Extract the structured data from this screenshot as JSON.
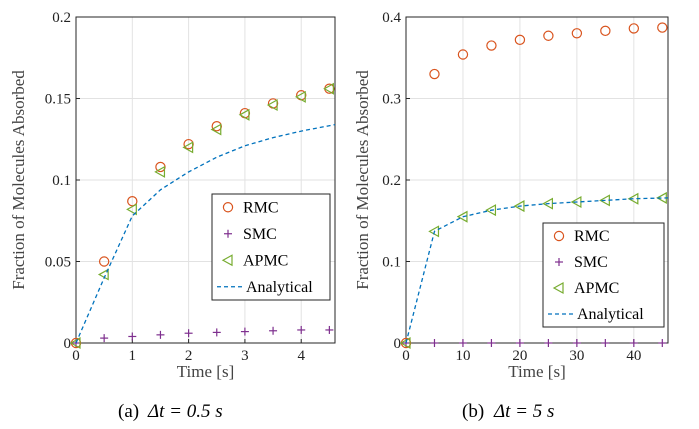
{
  "colors": {
    "RMC": "#d9541e",
    "SMC": "#7e2f8e",
    "APMC": "#77ac30",
    "Analytical": "#0072bd",
    "grid": "#e2e2e2"
  },
  "chart_data": [
    {
      "type": "scatter",
      "caption_prefix": "(a)",
      "caption_math": "Δt = 0.5 s",
      "xlabel": "Time [s]",
      "ylabel": "Fraction of Molecules Absorbed",
      "xlim": [
        0,
        4.6
      ],
      "ylim": [
        0,
        0.2
      ],
      "xticks": [
        0,
        1,
        2,
        3,
        4
      ],
      "yticks": [
        0,
        0.05,
        0.1,
        0.15,
        0.2
      ],
      "xtick_labels": [
        "0",
        "1",
        "2",
        "3",
        "4"
      ],
      "ytick_labels": [
        "0",
        "0.05",
        "0.1",
        "0.15",
        "0.2"
      ],
      "grid": true,
      "legend_position": "bottom-right",
      "legend_labels": [
        "RMC",
        "SMC",
        "APMC",
        "Analytical"
      ],
      "series": [
        {
          "name": "RMC",
          "marker": "circle",
          "x": [
            0,
            0.5,
            1,
            1.5,
            2,
            2.5,
            3,
            3.5,
            4,
            4.5
          ],
          "y": [
            0,
            0.05,
            0.087,
            0.108,
            0.122,
            0.133,
            0.141,
            0.147,
            0.152,
            0.156
          ]
        },
        {
          "name": "SMC",
          "marker": "plus",
          "x": [
            0,
            0.5,
            1,
            1.5,
            2,
            2.5,
            3,
            3.5,
            4,
            4.5
          ],
          "y": [
            0,
            0.003,
            0.004,
            0.005,
            0.006,
            0.0065,
            0.007,
            0.0075,
            0.008,
            0.008
          ]
        },
        {
          "name": "APMC",
          "marker": "triangle-left",
          "x": [
            0,
            0.5,
            1,
            1.5,
            2,
            2.5,
            3,
            3.5,
            4,
            4.5
          ],
          "y": [
            0,
            0.042,
            0.082,
            0.105,
            0.12,
            0.131,
            0.14,
            0.146,
            0.151,
            0.156
          ]
        },
        {
          "name": "Analytical",
          "marker": "dashed-line",
          "x": [
            0,
            0.5,
            1,
            1.5,
            2,
            2.5,
            3,
            3.5,
            4,
            4.6
          ],
          "y": [
            0,
            0.04,
            0.078,
            0.094,
            0.105,
            0.114,
            0.121,
            0.126,
            0.13,
            0.134
          ]
        }
      ]
    },
    {
      "type": "scatter",
      "caption_prefix": "(b)",
      "caption_math": "Δt = 5 s",
      "xlabel": "Time [s]",
      "ylabel": "Fraction of Molecules Absorbed",
      "xlim": [
        0,
        46
      ],
      "ylim": [
        0,
        0.4
      ],
      "xticks": [
        0,
        10,
        20,
        30,
        40
      ],
      "yticks": [
        0,
        0.1,
        0.2,
        0.3,
        0.4
      ],
      "xtick_labels": [
        "0",
        "10",
        "20",
        "30",
        "40"
      ],
      "ytick_labels": [
        "0",
        "0.1",
        "0.2",
        "0.3",
        "0.4"
      ],
      "grid": true,
      "legend_position": "bottom-right",
      "legend_labels": [
        "RMC",
        "SMC",
        "APMC",
        "Analytical"
      ],
      "series": [
        {
          "name": "RMC",
          "marker": "circle",
          "x": [
            0,
            5,
            10,
            15,
            20,
            25,
            30,
            35,
            40,
            45
          ],
          "y": [
            0,
            0.33,
            0.354,
            0.365,
            0.372,
            0.377,
            0.38,
            0.383,
            0.386,
            0.387
          ]
        },
        {
          "name": "SMC",
          "marker": "plus",
          "x": [
            0,
            5,
            10,
            15,
            20,
            25,
            30,
            35,
            40,
            45
          ],
          "y": [
            0,
            0,
            0,
            0,
            0,
            0,
            0,
            0,
            0,
            0
          ]
        },
        {
          "name": "APMC",
          "marker": "triangle-left",
          "x": [
            0,
            5,
            10,
            15,
            20,
            25,
            30,
            35,
            40,
            45
          ],
          "y": [
            0,
            0.137,
            0.155,
            0.163,
            0.168,
            0.171,
            0.173,
            0.175,
            0.177,
            0.178
          ]
        },
        {
          "name": "Analytical",
          "marker": "dashed-line",
          "x": [
            0,
            5,
            10,
            15,
            20,
            25,
            30,
            35,
            40,
            46
          ],
          "y": [
            0,
            0.137,
            0.155,
            0.163,
            0.168,
            0.171,
            0.173,
            0.175,
            0.177,
            0.178
          ]
        }
      ]
    }
  ]
}
